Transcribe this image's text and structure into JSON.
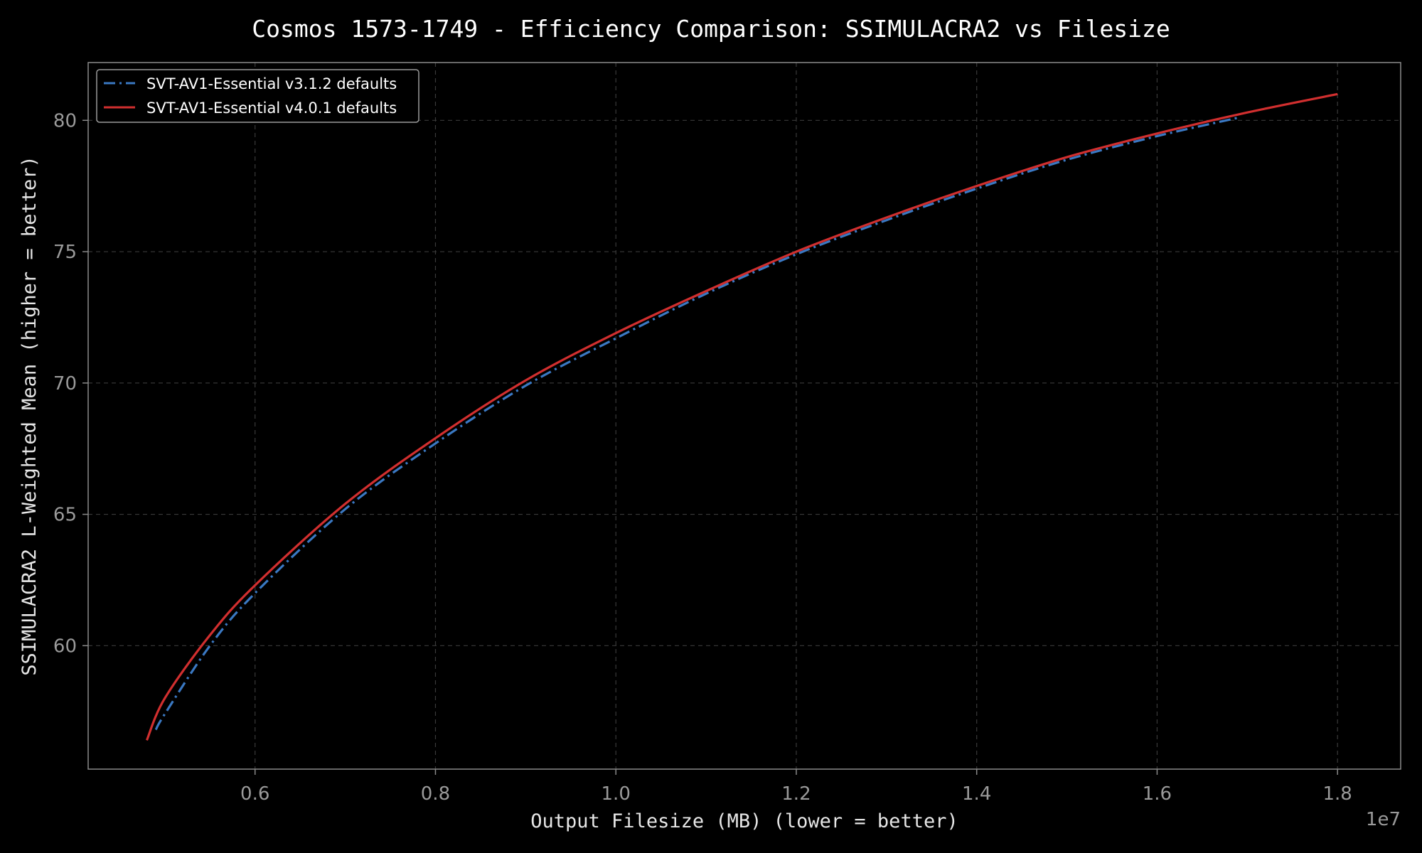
{
  "chart_data": {
    "type": "line",
    "title": "Cosmos 1573-1749 - Efficiency Comparison: SSIMULACRA2 vs Filesize",
    "xlabel": "Output Filesize (MB) (lower = better)",
    "ylabel": "SSIMULACRA2 L-Weighted Mean (higher = better)",
    "x_offset_label": "1e7",
    "xlim": [
      4150000,
      18700000
    ],
    "ylim": [
      55.3,
      82.2
    ],
    "x_ticks": [
      6000000,
      8000000,
      10000000,
      12000000,
      14000000,
      16000000,
      18000000
    ],
    "x_tick_labels": [
      "0.6",
      "0.8",
      "1.0",
      "1.2",
      "1.4",
      "1.6",
      "1.8"
    ],
    "y_ticks": [
      60,
      65,
      70,
      75,
      80
    ],
    "y_tick_labels": [
      "60",
      "65",
      "70",
      "75",
      "80"
    ],
    "grid": true,
    "legend_position": "top-left",
    "series": [
      {
        "name": "SVT-AV1-Essential v3.1.2 defaults",
        "color": "#3a78c2",
        "line_style": "dashdot",
        "x": [
          4900000,
          5000000,
          5500000,
          6000000,
          7000000,
          8000000,
          9000000,
          10000000,
          11000000,
          12000000,
          13000000,
          14000000,
          15000000,
          16000000,
          16900000
        ],
        "y": [
          56.8,
          57.4,
          60.0,
          62.0,
          65.2,
          67.7,
          69.9,
          71.7,
          73.4,
          74.9,
          76.2,
          77.4,
          78.5,
          79.4,
          80.1
        ]
      },
      {
        "name": "SVT-AV1-Essential v4.0.1 defaults",
        "color": "#d12f2f",
        "line_style": "solid",
        "x": [
          4800000,
          5000000,
          5500000,
          6000000,
          7000000,
          8000000,
          9000000,
          10000000,
          11000000,
          12000000,
          13000000,
          14000000,
          15000000,
          16000000,
          17000000,
          18000000
        ],
        "y": [
          56.4,
          58.0,
          60.4,
          62.3,
          65.4,
          67.9,
          70.1,
          71.9,
          73.5,
          75.0,
          76.3,
          77.5,
          78.6,
          79.5,
          80.3,
          81.0
        ]
      }
    ]
  }
}
